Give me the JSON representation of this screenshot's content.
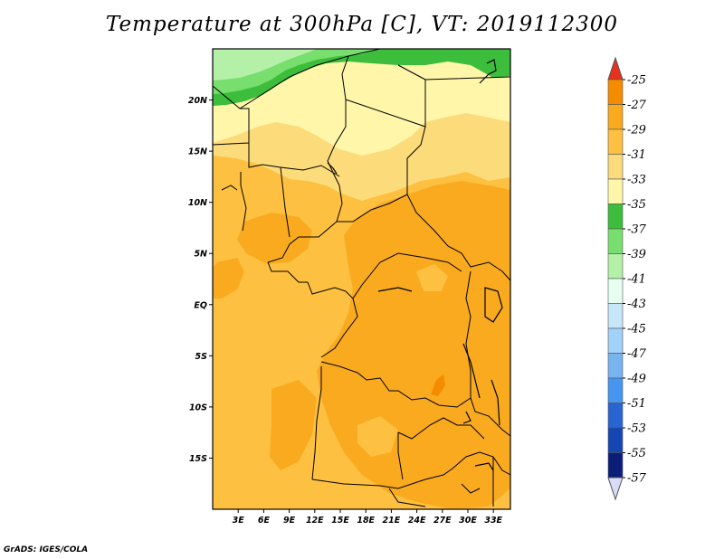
{
  "title": "Temperature at 300hPa [C], VT: 2019112300",
  "credit": "GrADS: IGES/COLA",
  "map": {
    "lat_labels": [
      {
        "text": "20N",
        "lat": 20
      },
      {
        "text": "15N",
        "lat": 15
      },
      {
        "text": "10N",
        "lat": 10
      },
      {
        "text": "5N",
        "lat": 5
      },
      {
        "text": "EQ",
        "lat": 0
      },
      {
        "text": "5S",
        "lat": -5
      },
      {
        "text": "10S",
        "lat": -10
      },
      {
        "text": "15S",
        "lat": -15
      }
    ],
    "lon_labels": [
      {
        "text": "3E",
        "lon": 3
      },
      {
        "text": "6E",
        "lon": 6
      },
      {
        "text": "9E",
        "lon": 9
      },
      {
        "text": "12E",
        "lon": 12
      },
      {
        "text": "15E",
        "lon": 15
      },
      {
        "text": "18E",
        "lon": 18
      },
      {
        "text": "21E",
        "lon": 21
      },
      {
        "text": "24E",
        "lon": 24
      },
      {
        "text": "27E",
        "lon": 27
      },
      {
        "text": "30E",
        "lon": 30
      },
      {
        "text": "33E",
        "lon": 33
      }
    ],
    "lon_range": [
      0,
      35
    ],
    "lat_range": [
      -20,
      25
    ]
  },
  "colorbar": {
    "labels": [
      "-25",
      "-27",
      "-29",
      "-31",
      "-33",
      "-35",
      "-37",
      "-39",
      "-41",
      "-43",
      "-45",
      "-47",
      "-49",
      "-51",
      "-53",
      "-55",
      "-57"
    ],
    "colors": [
      "#f05a0a",
      "#f58c00",
      "#faaa1e",
      "#fdc040",
      "#fcdb7a",
      "#fff6aa",
      "#3cbe3c",
      "#78de6e",
      "#b4f0a8",
      "#e6fff0",
      "#c8e6fa",
      "#a0d2fa",
      "#78b4f0",
      "#4696f0",
      "#2864d2",
      "#1446b4",
      "#0a1e78"
    ],
    "top_tip_color": "#e8321e",
    "bottom_tip_color": "#d8dcf8"
  },
  "field_colors": {
    "t_m28": "#f58c00",
    "t_m30": "#faaa1e",
    "t_m32": "#fdc040",
    "t_m33": "#fcdb7a",
    "t_m34": "#fff6aa",
    "t_m36": "#3cbe3c",
    "t_m38": "#78de6e",
    "t_m40": "#b4f0a8"
  }
}
